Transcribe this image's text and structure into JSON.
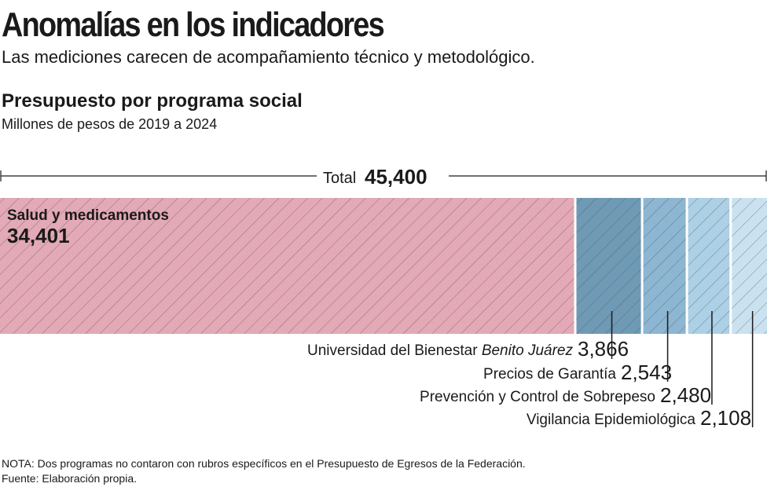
{
  "header": {
    "title": "Anomalías en los indicadores",
    "subtitle": "Las mediciones carecen de acompañamiento técnico y metodológico."
  },
  "colors": {
    "salud": "#e3a9b6",
    "universidad": "#6f9ab5",
    "precios": "#8cb6d2",
    "prevencion": "#acd0e6",
    "vigilancia": "#cae2f0",
    "hatch": "#555555",
    "text": "#1a1a1a"
  },
  "chart_data": {
    "type": "bar",
    "orientation": "horizontal-stacked",
    "title": "Presupuesto por programa social",
    "subtitle": "Millones de pesos de 2019 a 2024",
    "total_label": "Total",
    "total_value": "45,400",
    "total": 45400,
    "categories": [
      "Salud y medicamentos",
      "Universidad del Bienestar",
      "Precios de Garantía",
      "Prevención y Control de Sobrepeso",
      "Vigilancia Epidemiológica"
    ],
    "values": [
      34401,
      3866,
      2543,
      2480,
      2108
    ],
    "series": [
      {
        "name": "Salud y medicamentos",
        "value": 34401,
        "value_label": "34,401"
      },
      {
        "name": "Universidad del Bienestar",
        "name_italic": "Benito Juárez",
        "value": 3866,
        "value_label": "3,866"
      },
      {
        "name": "Precios de Garantía",
        "value": 2543,
        "value_label": "2,543"
      },
      {
        "name": "Prevención y Control de Sobrepeso",
        "value": 2480,
        "value_label": "2,480"
      },
      {
        "name": "Vigilancia Epidemiológica",
        "value": 2108,
        "value_label": "2,108"
      }
    ],
    "xlim": [
      0,
      45400
    ],
    "legend": "none",
    "grid": false
  },
  "footer": {
    "note": "NOTA: Dos programas no contaron con rubros específicos en el Presupuesto de Egresos de la Federación.",
    "source": "Fuente: Elaboración propia."
  }
}
